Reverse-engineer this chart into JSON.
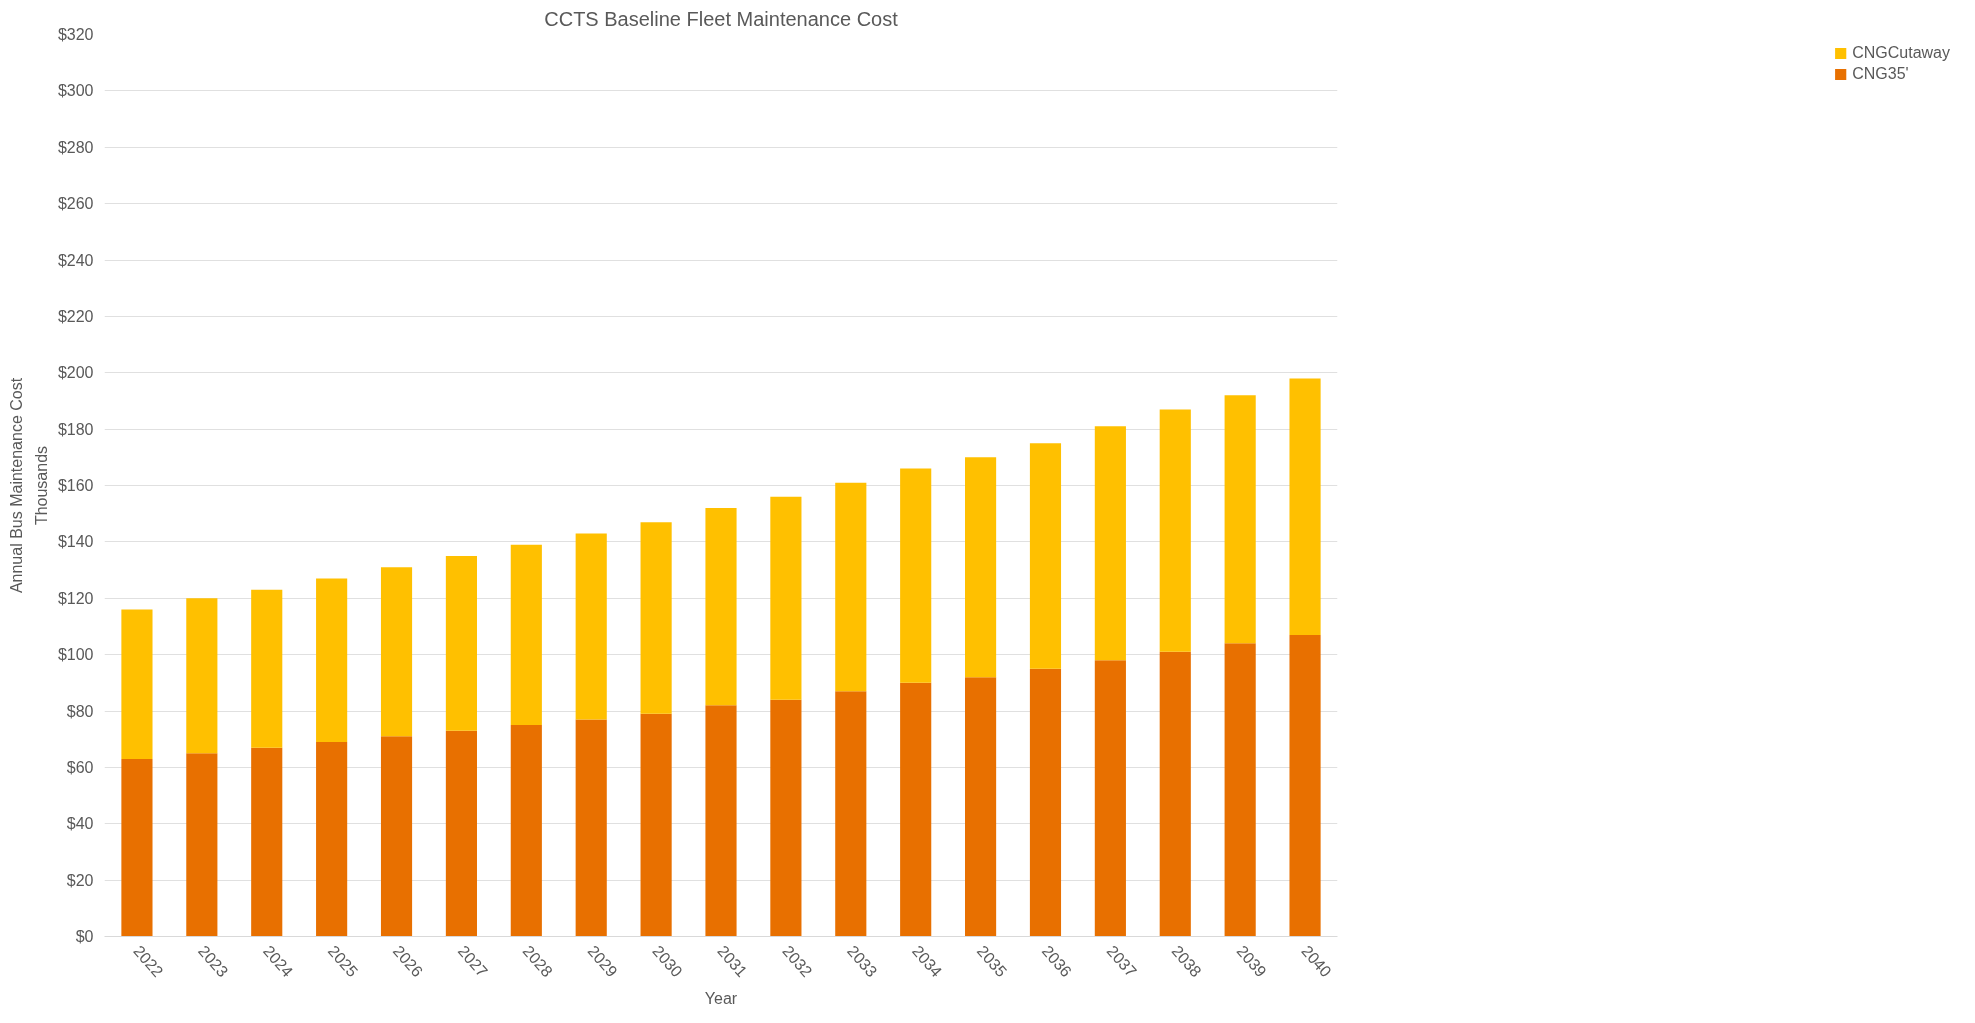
{
  "chart_data": {
    "type": "bar",
    "stacked": true,
    "title": "CCTS Baseline Fleet Maintenance Cost",
    "xlabel": "Year",
    "ylabel": "Annual Bus Maintenance Cost",
    "annotations": [
      "Thousands"
    ],
    "categories": [
      "2022",
      "2023",
      "2024",
      "2025",
      "2026",
      "2027",
      "2028",
      "2029",
      "2030",
      "2031",
      "2032",
      "2033",
      "2034",
      "2035",
      "2036",
      "2037",
      "2038",
      "2039",
      "2040"
    ],
    "series": [
      {
        "name": "CNG35'",
        "color": "#e87000",
        "values": [
          63,
          65,
          67,
          69,
          71,
          73,
          75,
          77,
          79,
          82,
          84,
          87,
          90,
          92,
          95,
          98,
          101,
          104,
          107
        ]
      },
      {
        "name": "CNGCutaway",
        "color": "#ffc000",
        "values": [
          53,
          55,
          56,
          58,
          60,
          62,
          64,
          66,
          68,
          70,
          72,
          74,
          76,
          78,
          80,
          83,
          86,
          88,
          91
        ]
      }
    ],
    "ylim": [
      0,
      320
    ],
    "yticks": [
      {
        "value": 0,
        "label": "$0"
      },
      {
        "value": 20,
        "label": "$20"
      },
      {
        "value": 40,
        "label": "$40"
      },
      {
        "value": 60,
        "label": "$60"
      },
      {
        "value": 80,
        "label": "$80"
      },
      {
        "value": 100,
        "label": "$100"
      },
      {
        "value": 120,
        "label": "$120"
      },
      {
        "value": 140,
        "label": "$140"
      },
      {
        "value": 160,
        "label": "$160"
      },
      {
        "value": 180,
        "label": "$180"
      },
      {
        "value": 200,
        "label": "$200"
      },
      {
        "value": 220,
        "label": "$220"
      },
      {
        "value": 240,
        "label": "$240"
      },
      {
        "value": 260,
        "label": "$260"
      },
      {
        "value": 280,
        "label": "$280"
      },
      {
        "value": 300,
        "label": "$300"
      },
      {
        "value": 320,
        "label": "$320"
      }
    ],
    "grid": "y",
    "legend": "right"
  }
}
